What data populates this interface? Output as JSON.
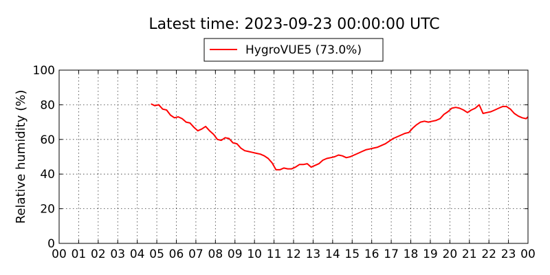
{
  "chart_data": {
    "type": "line",
    "title": "Latest time: 2023-09-23 00:00:00 UTC",
    "xlabel": "",
    "ylabel": "Relative humidity (%)",
    "xlim": [
      0,
      24
    ],
    "ylim": [
      0,
      100
    ],
    "xticks": [
      0,
      1,
      2,
      3,
      4,
      5,
      6,
      7,
      8,
      9,
      10,
      11,
      12,
      13,
      14,
      15,
      16,
      17,
      18,
      19,
      20,
      21,
      22,
      23,
      24
    ],
    "xtick_labels": [
      "00",
      "01",
      "02",
      "03",
      "04",
      "05",
      "06",
      "07",
      "08",
      "09",
      "10",
      "11",
      "12",
      "13",
      "14",
      "15",
      "16",
      "17",
      "18",
      "19",
      "20",
      "21",
      "22",
      "23",
      "00"
    ],
    "yticks": [
      0,
      20,
      40,
      60,
      80,
      100
    ],
    "ytick_labels": [
      "0",
      "20",
      "40",
      "60",
      "80",
      "100"
    ],
    "grid": true,
    "legend_position": "top-center",
    "series": [
      {
        "name": "HygroVUE5 (73.0%)",
        "color": "#ff0000",
        "x": [
          4.7,
          4.9,
          5.1,
          5.3,
          5.5,
          5.7,
          5.9,
          6.1,
          6.3,
          6.5,
          6.7,
          6.9,
          7.1,
          7.3,
          7.5,
          7.7,
          7.9,
          8.1,
          8.3,
          8.5,
          8.7,
          8.9,
          9.1,
          9.3,
          9.5,
          9.7,
          9.9,
          10.1,
          10.3,
          10.5,
          10.7,
          10.9,
          11.1,
          11.3,
          11.5,
          11.7,
          11.9,
          12.1,
          12.3,
          12.5,
          12.7,
          12.9,
          13.1,
          13.3,
          13.5,
          13.7,
          13.9,
          14.1,
          14.3,
          14.5,
          14.7,
          14.9,
          15.1,
          15.3,
          15.5,
          15.7,
          15.9,
          16.1,
          16.3,
          16.5,
          16.7,
          16.9,
          17.1,
          17.3,
          17.5,
          17.7,
          17.9,
          18.1,
          18.3,
          18.5,
          18.7,
          18.9,
          19.1,
          19.3,
          19.5,
          19.7,
          19.9,
          20.1,
          20.3,
          20.5,
          20.7,
          20.9,
          21.1,
          21.3,
          21.5,
          21.7,
          21.9,
          22.1,
          22.3,
          22.5,
          22.7,
          22.9,
          23.1,
          23.3,
          23.5,
          23.7,
          23.9,
          24.0
        ],
        "values": [
          80.5,
          79.5,
          80,
          77.5,
          77,
          74,
          72.5,
          73,
          72,
          70,
          69.5,
          67,
          65,
          66,
          67.5,
          65,
          63,
          60,
          59.5,
          61,
          60.5,
          58,
          57.5,
          55,
          53.5,
          53,
          52.5,
          52,
          51.5,
          50.5,
          49,
          46.5,
          42.5,
          42.5,
          43.5,
          43,
          43,
          44,
          45.5,
          45.5,
          46,
          44,
          45,
          46,
          48,
          49,
          49.5,
          50,
          51,
          50.5,
          49.5,
          50,
          51,
          52,
          53,
          54,
          54.5,
          55,
          55.5,
          56.5,
          57.5,
          59,
          60.5,
          61.5,
          62.5,
          63.5,
          64,
          66.5,
          68.5,
          70,
          70.5,
          70,
          70.5,
          71,
          72,
          74.5,
          76,
          78,
          78.5,
          78,
          77,
          75.5,
          77,
          78,
          80,
          75,
          75.5,
          76,
          77,
          78,
          79,
          79,
          77.5,
          75,
          73.5,
          72.5,
          72,
          73
        ]
      }
    ]
  }
}
